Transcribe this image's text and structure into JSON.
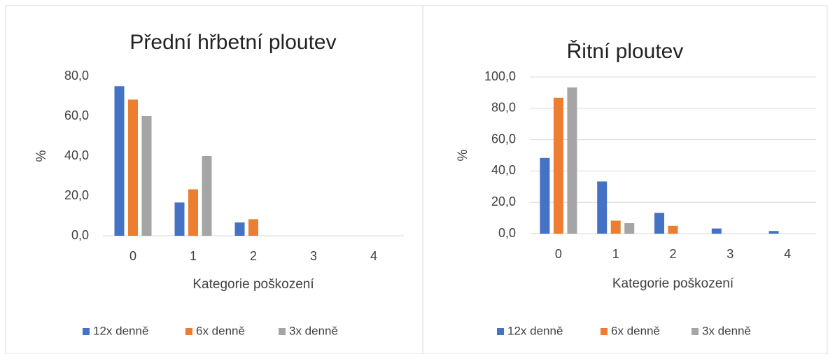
{
  "chart_data": [
    {
      "type": "bar",
      "title": "Přední hřbetní ploutev",
      "y_label": "%",
      "x_label": "Kategorie poškození",
      "categories": [
        "0",
        "1",
        "2",
        "3",
        "4"
      ],
      "series": [
        {
          "name": "12x denně",
          "color": "#4472c4",
          "values": [
            75,
            16.7,
            6.7,
            0,
            0
          ]
        },
        {
          "name": "6x denně",
          "color": "#ed7d31",
          "values": [
            68.3,
            23.3,
            8.3,
            0,
            0
          ]
        },
        {
          "name": "3x denně",
          "color": "#a5a5a5",
          "values": [
            60,
            40,
            0,
            0,
            0
          ]
        }
      ],
      "ylim": [
        0,
        80
      ],
      "yticks": [
        {
          "value": 0,
          "label": "0,0"
        },
        {
          "value": 20,
          "label": "20,0"
        },
        {
          "value": 40,
          "label": "40,0"
        },
        {
          "value": 60,
          "label": "60,0"
        },
        {
          "value": 80,
          "label": "80,0"
        }
      ],
      "grid": false,
      "legend": "bottom"
    },
    {
      "type": "bar",
      "title": "Řitní ploutev",
      "y_label": "%",
      "x_label": "Kategorie poškození",
      "categories": [
        "0",
        "1",
        "2",
        "3",
        "4"
      ],
      "series": [
        {
          "name": "12x denně",
          "color": "#4472c4",
          "values": [
            48.3,
            33.3,
            13.3,
            3.3,
            1.7
          ]
        },
        {
          "name": "6x denně",
          "color": "#ed7d31",
          "values": [
            86.7,
            8.3,
            5,
            0,
            0
          ]
        },
        {
          "name": "3x denně",
          "color": "#a5a5a5",
          "values": [
            93.3,
            6.7,
            0,
            0,
            0
          ]
        }
      ],
      "ylim": [
        0,
        100
      ],
      "yticks": [
        {
          "value": 0,
          "label": "0,0"
        },
        {
          "value": 20,
          "label": "20,0"
        },
        {
          "value": 40,
          "label": "40,0"
        },
        {
          "value": 60,
          "label": "60,0"
        },
        {
          "value": 80,
          "label": "80,0"
        },
        {
          "value": 100,
          "label": "100,0"
        }
      ],
      "grid": true,
      "legend": "bottom"
    }
  ]
}
